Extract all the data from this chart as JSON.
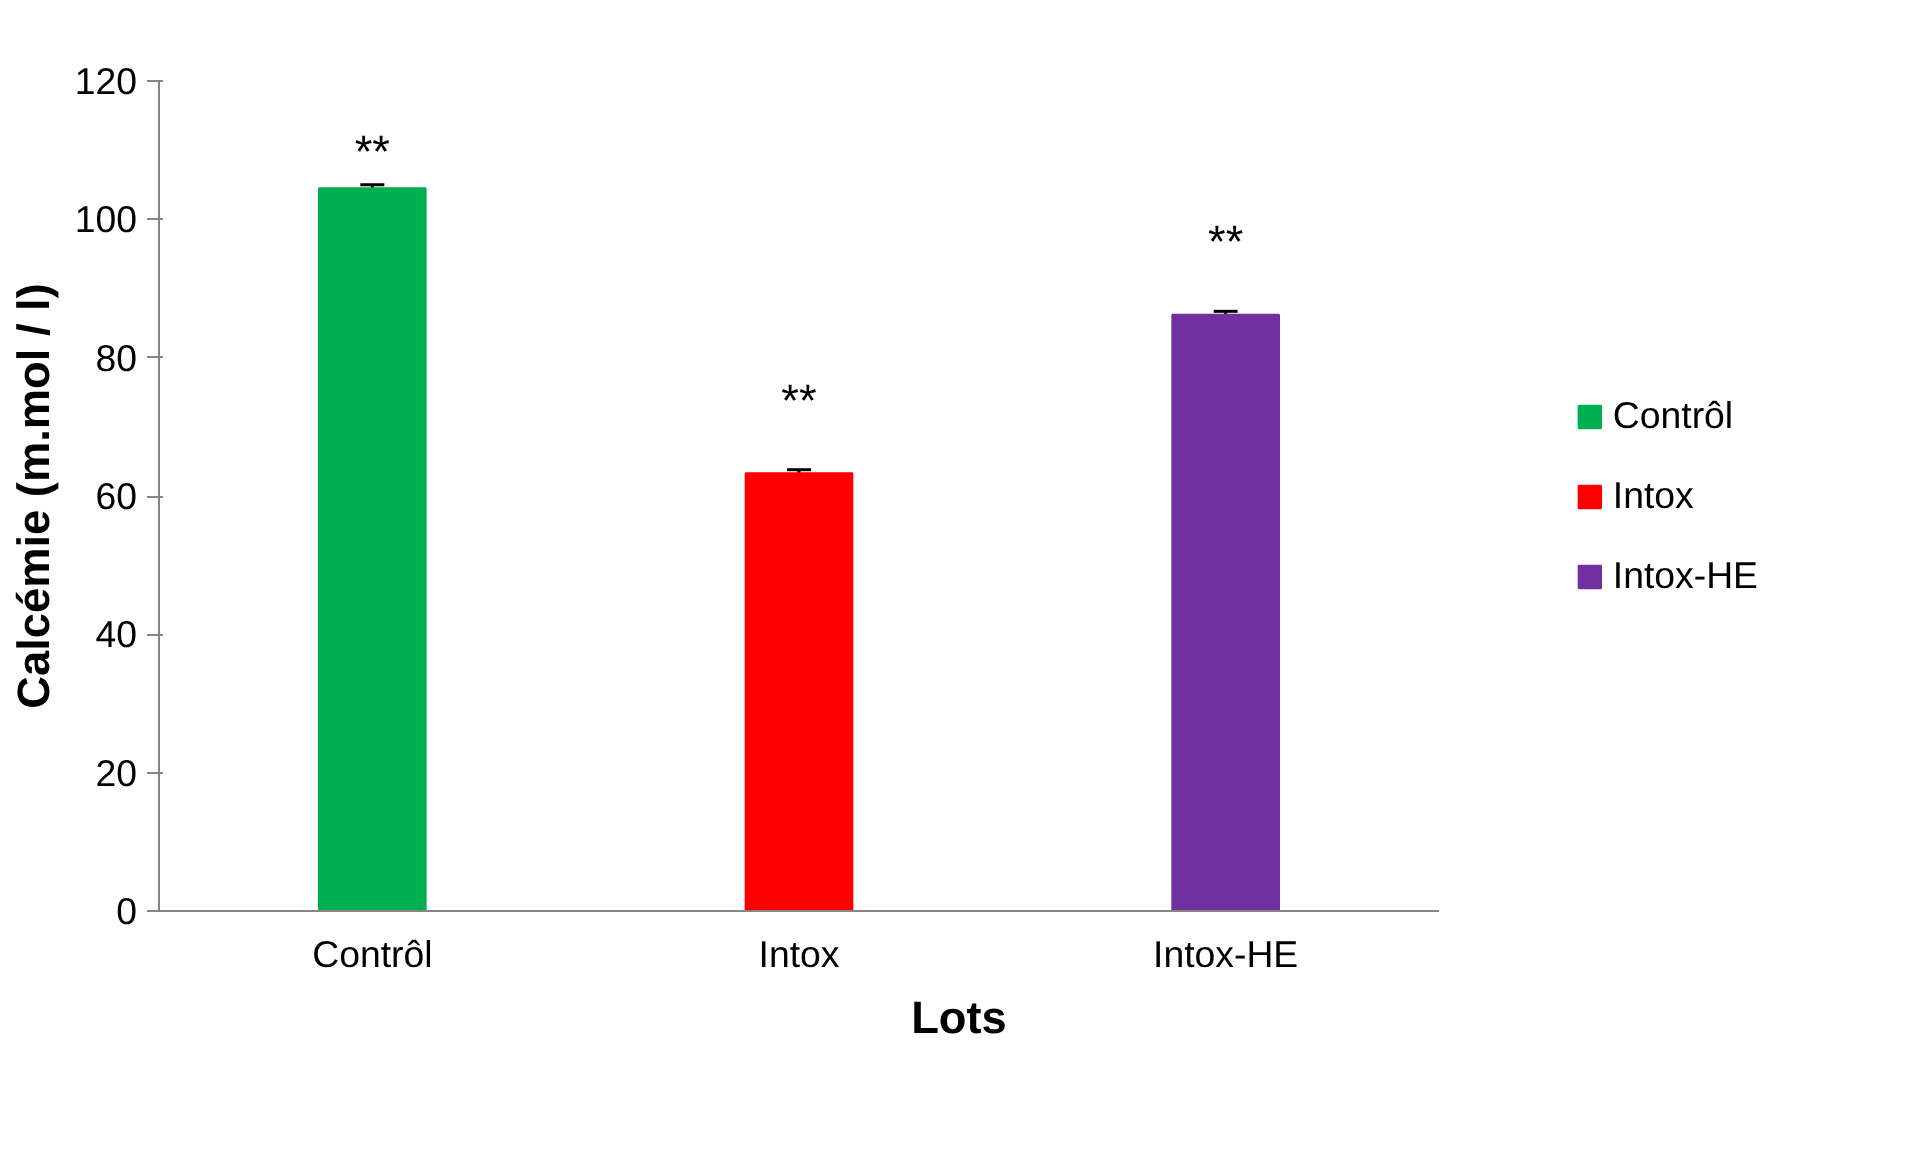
{
  "chart_data": {
    "type": "bar",
    "xlabel": "Lots",
    "ylabel": "Calcémie (m.mol / l)",
    "categories": [
      "Contrôl",
      "Intox",
      "Intox-HE"
    ],
    "series": [
      {
        "name": "Contrôl",
        "color": "#00b050",
        "values": [
          104.5,
          null,
          null
        ],
        "errors": [
          0.5,
          null,
          null
        ]
      },
      {
        "name": "Intox",
        "color": "#ff0000",
        "values": [
          null,
          63.3,
          null
        ],
        "errors": [
          null,
          0.5,
          null
        ]
      },
      {
        "name": "Intox-HE",
        "color": "#7030a0",
        "values": [
          null,
          null,
          86.2
        ],
        "errors": [
          null,
          null,
          0.5
        ]
      }
    ],
    "ylim": [
      0,
      120
    ],
    "yticks": [
      0,
      20,
      40,
      60,
      80,
      100,
      120
    ],
    "grid": false,
    "legend": "right",
    "annotations": [
      "**",
      "**",
      "**"
    ]
  }
}
